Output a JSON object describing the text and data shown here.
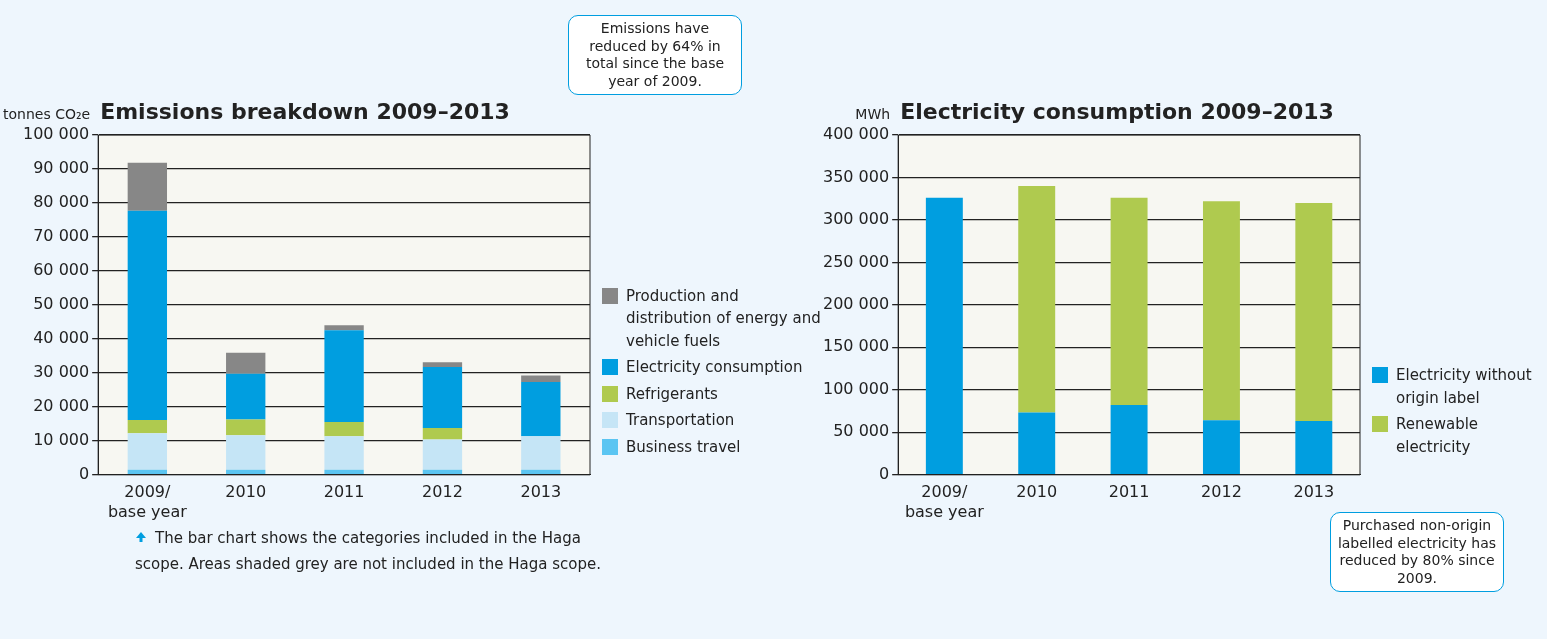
{
  "chart_data": [
    {
      "type": "bar",
      "title": "Emissions breakdown 2009–2013",
      "ylabel": "tonnes CO₂e",
      "stacked": true,
      "grid": "y",
      "legend": "right",
      "categories": [
        "2009/\nbase year",
        "2010",
        "2011",
        "2012",
        "2013"
      ],
      "series": [
        {
          "name": "Business travel",
          "color": "#5bc5f2",
          "values": [
            1400,
            1400,
            1400,
            1400,
            1400
          ]
        },
        {
          "name": "Transportation",
          "color": "#c5e5f6",
          "values": [
            10800,
            10200,
            9900,
            8900,
            9900
          ]
        },
        {
          "name": "Refrigerants",
          "color": "#afca4f",
          "values": [
            3900,
            4600,
            4200,
            3400,
            0
          ]
        },
        {
          "name": "Electricity consumption",
          "color": "#009ee0",
          "values": [
            61600,
            13500,
            27000,
            18000,
            16000
          ]
        },
        {
          "name": "Production and distribution of energy and vehicle fuels",
          "color": "#878787",
          "values": [
            14100,
            6200,
            1500,
            1400,
            1900
          ]
        }
      ],
      "ylim": [
        0,
        100000
      ],
      "yticks": [
        0,
        {
          "value": 10000,
          "label": "10 000"
        },
        {
          "value": 20000,
          "label": "20 000"
        },
        {
          "value": 30000,
          "label": "30 000"
        },
        {
          "value": 40000,
          "label": "40 000"
        },
        {
          "value": 50000,
          "label": "50 000"
        },
        {
          "value": 60000,
          "label": "60 000"
        },
        {
          "value": 70000,
          "label": "70 000"
        },
        {
          "value": 80000,
          "label": "80 000"
        },
        {
          "value": 90000,
          "label": "90 000"
        },
        {
          "value": 100000,
          "label": "100 000"
        }
      ],
      "annotations": [
        "Emissions have reduced by 64% in total since the base year of 2009.",
        "The bar chart shows the categories included in the Haga scope. Areas shaded grey are not included in the Haga scope."
      ]
    },
    {
      "type": "bar",
      "title": "Electricity consumption 2009–2013",
      "ylabel": "MWh",
      "stacked": true,
      "grid": "y",
      "legend": "right",
      "categories": [
        "2009/\nbase year",
        "2010",
        "2011",
        "2012",
        "2013"
      ],
      "series": [
        {
          "name": "Electricity without origin label",
          "color": "#009ee0",
          "values": [
            326000,
            73000,
            82000,
            64000,
            63000
          ]
        },
        {
          "name": "Renewable electricity",
          "color": "#afca4f",
          "values": [
            0,
            267000,
            244000,
            258000,
            257000
          ]
        }
      ],
      "ylim": [
        0,
        400000
      ],
      "yticks": [
        0,
        {
          "value": 50000,
          "label": "50 000"
        },
        {
          "value": 100000,
          "label": "100 000"
        },
        {
          "value": 150000,
          "label": "150 000"
        },
        {
          "value": 200000,
          "label": "200 000"
        },
        {
          "value": 250000,
          "label": "250 000"
        },
        {
          "value": 300000,
          "label": "300 000"
        },
        {
          "value": 350000,
          "label": "350 000"
        },
        {
          "value": 400000,
          "label": "400 000"
        }
      ],
      "annotations": [
        "Purchased non-origin labelled electricity has reduced by 80% since 2009."
      ]
    }
  ]
}
